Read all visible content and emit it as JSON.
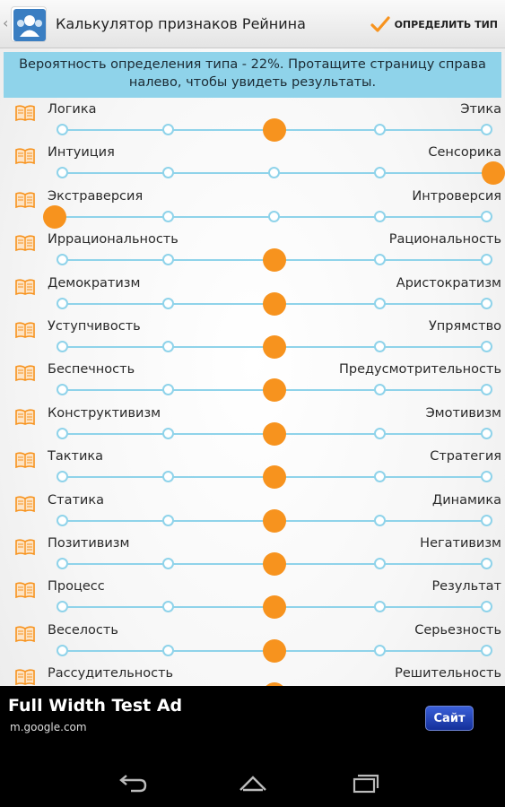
{
  "app": {
    "title": "Калькулятор признаков Рейнина",
    "icon": "people-icon",
    "action_label": "ОПРЕДЕЛИТЬ ТИП",
    "action_icon": "check-icon",
    "accent": "#f7931e",
    "track_color": "#8fd3ea"
  },
  "banner": {
    "text": "Вероятность определения типа - 22%. Протащите страницу справа налево, чтобы увидеть результаты."
  },
  "slider_positions_count": 5,
  "traits": [
    {
      "left": "Логика",
      "right": "Этика",
      "value": 3
    },
    {
      "left": "Интуиция",
      "right": "Сенсорика",
      "value": 5
    },
    {
      "left": "Экстраверсия",
      "right": "Интроверсия",
      "value": 1
    },
    {
      "left": "Иррациональность",
      "right": "Рациональность",
      "value": 3
    },
    {
      "left": "Демократизм",
      "right": "Аристократизм",
      "value": 3
    },
    {
      "left": "Уступчивость",
      "right": "Упрямство",
      "value": 3
    },
    {
      "left": "Беспечность",
      "right": "Предусмотрительность",
      "value": 3
    },
    {
      "left": "Конструктивизм",
      "right": "Эмотивизм",
      "value": 3
    },
    {
      "left": "Тактика",
      "right": "Стратегия",
      "value": 3
    },
    {
      "left": "Статика",
      "right": "Динамика",
      "value": 3
    },
    {
      "left": "Позитивизм",
      "right": "Негативизм",
      "value": 3
    },
    {
      "left": "Процесс",
      "right": "Результат",
      "value": 3
    },
    {
      "left": "Веселость",
      "right": "Серьезность",
      "value": 3
    },
    {
      "left": "Рассудительность",
      "right": "Решительность",
      "value": 3
    }
  ],
  "ad": {
    "title": "Full Width Test Ad",
    "url": "m.google.com",
    "button_label": "Сайт"
  },
  "navbar": {
    "back_icon": "back-icon",
    "home_icon": "home-icon",
    "recents_icon": "recents-icon"
  }
}
